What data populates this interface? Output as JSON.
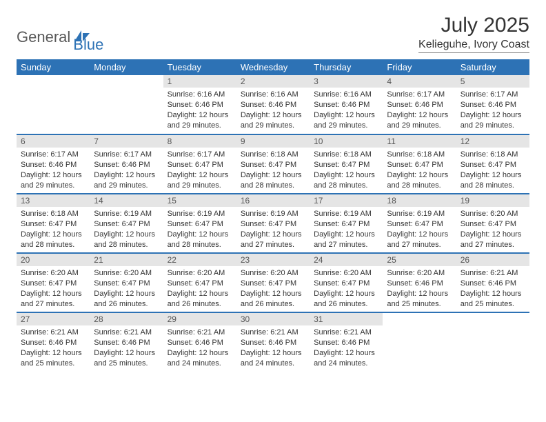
{
  "brand": {
    "part1": "General",
    "part2": "Blue"
  },
  "title": "July 2025",
  "location": "Kelieguhe, Ivory Coast",
  "colors": {
    "header_bg": "#2d72b5",
    "header_text": "#ffffff",
    "daynum_bg": "#e5e5e5",
    "daynum_text": "#555555",
    "body_text": "#333333",
    "row_divider": "#2d72b5",
    "brand_gray": "#5a5a5a",
    "brand_blue": "#2d72b5",
    "page_bg": "#ffffff"
  },
  "weekdays": [
    "Sunday",
    "Monday",
    "Tuesday",
    "Wednesday",
    "Thursday",
    "Friday",
    "Saturday"
  ],
  "weeks": [
    [
      null,
      null,
      {
        "n": "1",
        "sunrise": "6:16 AM",
        "sunset": "6:46 PM",
        "daylight": "12 hours and 29 minutes."
      },
      {
        "n": "2",
        "sunrise": "6:16 AM",
        "sunset": "6:46 PM",
        "daylight": "12 hours and 29 minutes."
      },
      {
        "n": "3",
        "sunrise": "6:16 AM",
        "sunset": "6:46 PM",
        "daylight": "12 hours and 29 minutes."
      },
      {
        "n": "4",
        "sunrise": "6:17 AM",
        "sunset": "6:46 PM",
        "daylight": "12 hours and 29 minutes."
      },
      {
        "n": "5",
        "sunrise": "6:17 AM",
        "sunset": "6:46 PM",
        "daylight": "12 hours and 29 minutes."
      }
    ],
    [
      {
        "n": "6",
        "sunrise": "6:17 AM",
        "sunset": "6:46 PM",
        "daylight": "12 hours and 29 minutes."
      },
      {
        "n": "7",
        "sunrise": "6:17 AM",
        "sunset": "6:46 PM",
        "daylight": "12 hours and 29 minutes."
      },
      {
        "n": "8",
        "sunrise": "6:17 AM",
        "sunset": "6:47 PM",
        "daylight": "12 hours and 29 minutes."
      },
      {
        "n": "9",
        "sunrise": "6:18 AM",
        "sunset": "6:47 PM",
        "daylight": "12 hours and 28 minutes."
      },
      {
        "n": "10",
        "sunrise": "6:18 AM",
        "sunset": "6:47 PM",
        "daylight": "12 hours and 28 minutes."
      },
      {
        "n": "11",
        "sunrise": "6:18 AM",
        "sunset": "6:47 PM",
        "daylight": "12 hours and 28 minutes."
      },
      {
        "n": "12",
        "sunrise": "6:18 AM",
        "sunset": "6:47 PM",
        "daylight": "12 hours and 28 minutes."
      }
    ],
    [
      {
        "n": "13",
        "sunrise": "6:18 AM",
        "sunset": "6:47 PM",
        "daylight": "12 hours and 28 minutes."
      },
      {
        "n": "14",
        "sunrise": "6:19 AM",
        "sunset": "6:47 PM",
        "daylight": "12 hours and 28 minutes."
      },
      {
        "n": "15",
        "sunrise": "6:19 AM",
        "sunset": "6:47 PM",
        "daylight": "12 hours and 28 minutes."
      },
      {
        "n": "16",
        "sunrise": "6:19 AM",
        "sunset": "6:47 PM",
        "daylight": "12 hours and 27 minutes."
      },
      {
        "n": "17",
        "sunrise": "6:19 AM",
        "sunset": "6:47 PM",
        "daylight": "12 hours and 27 minutes."
      },
      {
        "n": "18",
        "sunrise": "6:19 AM",
        "sunset": "6:47 PM",
        "daylight": "12 hours and 27 minutes."
      },
      {
        "n": "19",
        "sunrise": "6:20 AM",
        "sunset": "6:47 PM",
        "daylight": "12 hours and 27 minutes."
      }
    ],
    [
      {
        "n": "20",
        "sunrise": "6:20 AM",
        "sunset": "6:47 PM",
        "daylight": "12 hours and 27 minutes."
      },
      {
        "n": "21",
        "sunrise": "6:20 AM",
        "sunset": "6:47 PM",
        "daylight": "12 hours and 26 minutes."
      },
      {
        "n": "22",
        "sunrise": "6:20 AM",
        "sunset": "6:47 PM",
        "daylight": "12 hours and 26 minutes."
      },
      {
        "n": "23",
        "sunrise": "6:20 AM",
        "sunset": "6:47 PM",
        "daylight": "12 hours and 26 minutes."
      },
      {
        "n": "24",
        "sunrise": "6:20 AM",
        "sunset": "6:47 PM",
        "daylight": "12 hours and 26 minutes."
      },
      {
        "n": "25",
        "sunrise": "6:20 AM",
        "sunset": "6:46 PM",
        "daylight": "12 hours and 25 minutes."
      },
      {
        "n": "26",
        "sunrise": "6:21 AM",
        "sunset": "6:46 PM",
        "daylight": "12 hours and 25 minutes."
      }
    ],
    [
      {
        "n": "27",
        "sunrise": "6:21 AM",
        "sunset": "6:46 PM",
        "daylight": "12 hours and 25 minutes."
      },
      {
        "n": "28",
        "sunrise": "6:21 AM",
        "sunset": "6:46 PM",
        "daylight": "12 hours and 25 minutes."
      },
      {
        "n": "29",
        "sunrise": "6:21 AM",
        "sunset": "6:46 PM",
        "daylight": "12 hours and 24 minutes."
      },
      {
        "n": "30",
        "sunrise": "6:21 AM",
        "sunset": "6:46 PM",
        "daylight": "12 hours and 24 minutes."
      },
      {
        "n": "31",
        "sunrise": "6:21 AM",
        "sunset": "6:46 PM",
        "daylight": "12 hours and 24 minutes."
      },
      null,
      null
    ]
  ],
  "labels": {
    "sunrise": "Sunrise:",
    "sunset": "Sunset:",
    "daylight": "Daylight:"
  }
}
